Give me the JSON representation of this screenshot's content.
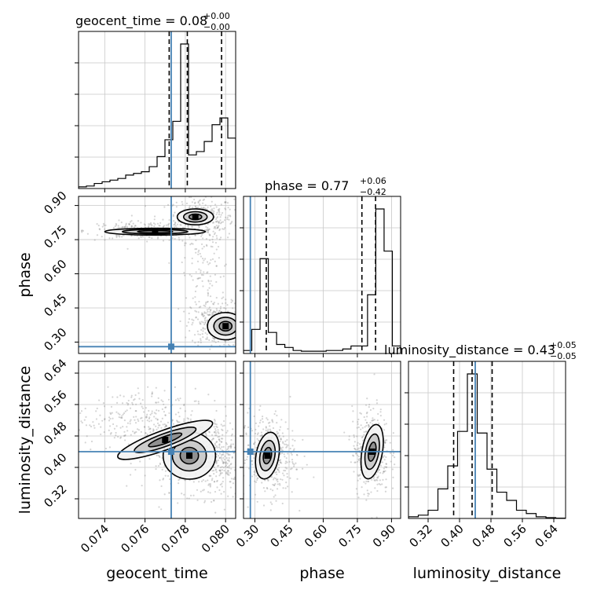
{
  "chart_data": {
    "type": "corner",
    "parameters": [
      {
        "name": "geocent_time",
        "label": "geocent_time",
        "range": [
          0.0727,
          0.0805
        ],
        "ticks": [
          0.074,
          0.076,
          0.078,
          0.08
        ],
        "tick_labels": [
          "0.074",
          "0.076",
          "0.078",
          "0.080"
        ],
        "truth": 0.0773,
        "quantiles": [
          0.0772,
          0.0781,
          0.0798
        ],
        "title": "geocent_time = 0.08",
        "title_sup": "+0.00",
        "title_sub": "−0.00",
        "hist": [
          0.01,
          0.015,
          0.03,
          0.04,
          0.05,
          0.06,
          0.08,
          0.09,
          0.1,
          0.13,
          0.19,
          0.29,
          0.4,
          0.86,
          0.2,
          0.22,
          0.28,
          0.38,
          0.42,
          0.3
        ]
      },
      {
        "name": "phase",
        "label": "phase",
        "range": [
          0.25,
          0.94
        ],
        "ticks": [
          0.3,
          0.45,
          0.6,
          0.75,
          0.9
        ],
        "tick_labels": [
          "0.30",
          "0.45",
          "0.60",
          "0.75",
          "0.90"
        ],
        "truth": 0.28,
        "quantiles": [
          0.35,
          0.77,
          0.83
        ],
        "title": "phase = 0.77",
        "title_sup": "+0.06",
        "title_sub": "−0.42",
        "hist": [
          0.02,
          0.16,
          0.63,
          0.14,
          0.06,
          0.04,
          0.02,
          0.015,
          0.015,
          0.015,
          0.02,
          0.02,
          0.03,
          0.05,
          0.05,
          0.39,
          0.96,
          0.68,
          0.05
        ]
      },
      {
        "name": "luminosity_distance",
        "label": "luminosity_distance",
        "range": [
          0.27,
          0.67
        ],
        "ticks": [
          0.32,
          0.4,
          0.48,
          0.56,
          0.64
        ],
        "tick_labels": [
          "0.32",
          "0.40",
          "0.48",
          "0.56",
          "0.64"
        ],
        "truth": 0.44,
        "quantiles": [
          0.385,
          0.432,
          0.483
        ],
        "title": "luminosity_distance = 0.43",
        "title_sup": "+0.05",
        "title_sub": "−0.05",
        "hist": [
          0.01,
          0.02,
          0.05,
          0.18,
          0.32,
          0.53,
          0.88,
          0.52,
          0.3,
          0.16,
          0.11,
          0.05,
          0.03,
          0.01,
          0.005,
          0.002
        ]
      }
    ],
    "grid": true,
    "truth_color": "#4682b4",
    "contour_color": "#000000"
  }
}
